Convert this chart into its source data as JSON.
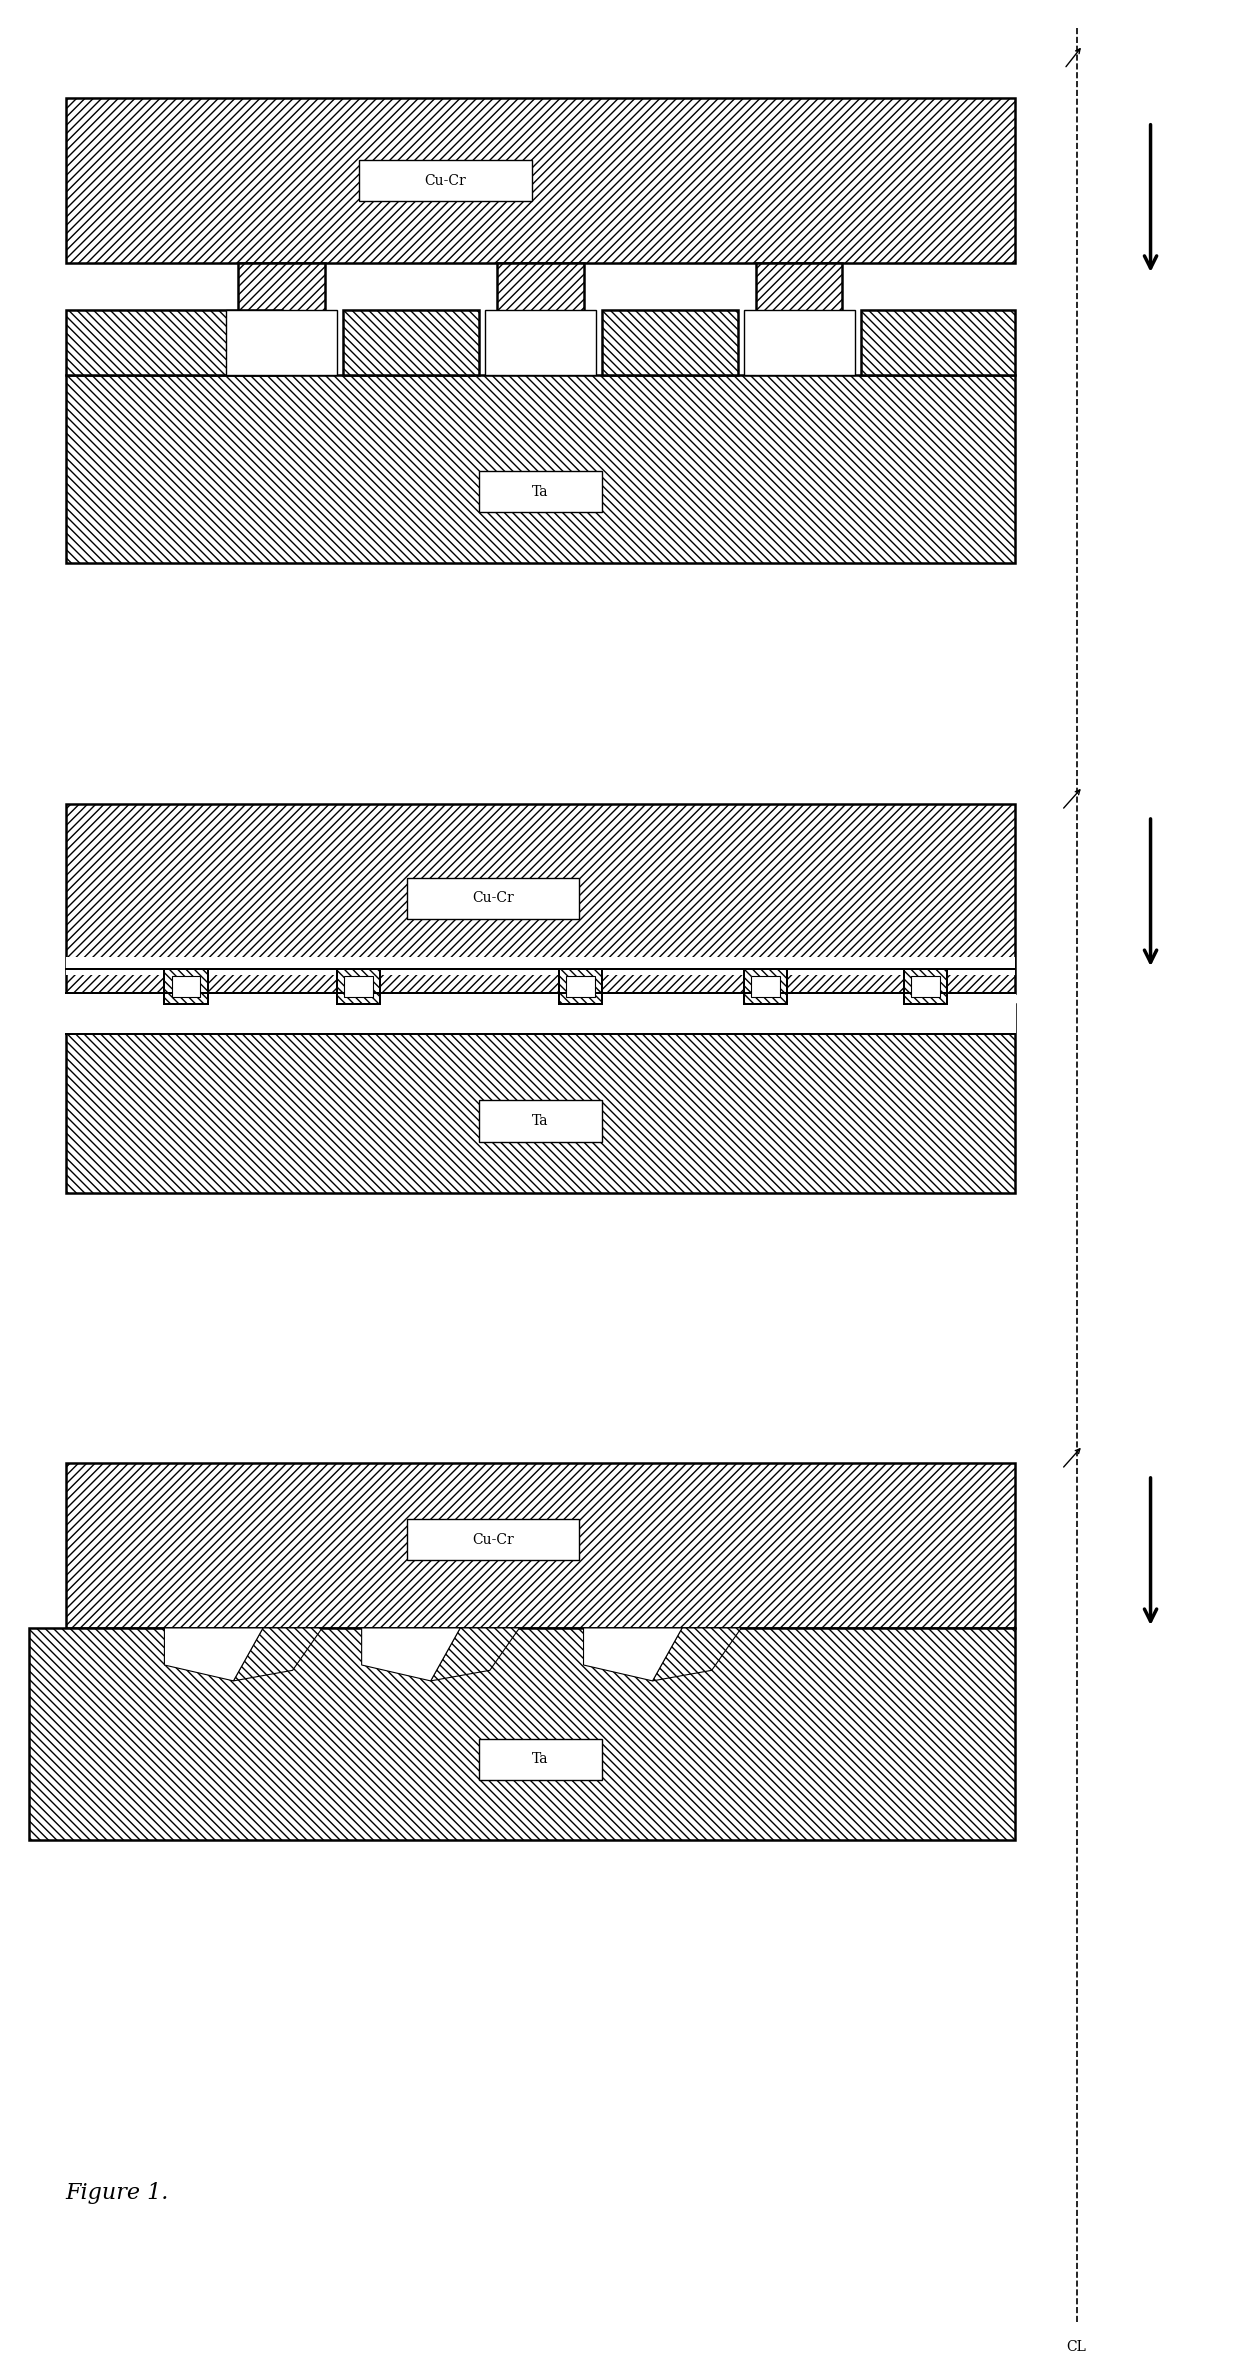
{
  "bg_color": "#ffffff",
  "line_color": "#000000",
  "figure_label": "Figure 1.",
  "cl_label": "CL",
  "label_cucr": "Cu-Cr",
  "label_ta": "Ta",
  "hatch_cucr": "////",
  "hatch_ta": "\\\\\\\\"
}
